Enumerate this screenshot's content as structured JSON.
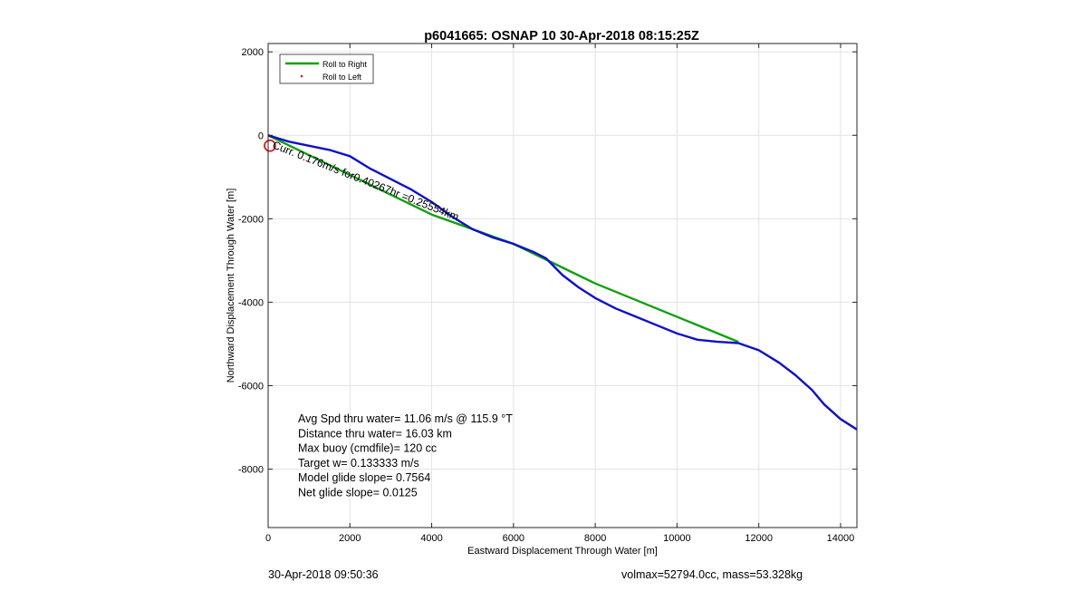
{
  "chart_data": {
    "type": "line",
    "title": "p6041665: OSNAP 10 30-Apr-2018 08:15:25Z",
    "xlabel": "Eastward Displacement Through Water [m]",
    "ylabel": "Northward Displacement Through Water [m]",
    "xlim": [
      0,
      14400
    ],
    "ylim": [
      -9400,
      2200
    ],
    "xticks": [
      0,
      2000,
      4000,
      6000,
      8000,
      10000,
      12000,
      14000
    ],
    "yticks": [
      2000,
      0,
      -2000,
      -4000,
      -6000,
      -8000
    ],
    "grid": true,
    "legend_position": "top-left",
    "series": [
      {
        "name": "Roll to Right",
        "color": "#10a010",
        "x": [
          0,
          4000,
          6000,
          8000,
          11500
        ],
        "y": [
          0,
          -1900,
          -2600,
          -3550,
          -4950
        ]
      },
      {
        "name": "Roll to Left",
        "color": "#d42020",
        "marker": "dot",
        "x": [],
        "y": []
      },
      {
        "name": "",
        "color": "#1010c8",
        "x": [
          0,
          500,
          1000,
          1500,
          2000,
          2500,
          3000,
          3500,
          4000,
          4500,
          5000,
          5500,
          6000,
          6500,
          6800,
          7200,
          7600,
          8000,
          8500,
          9000,
          9500,
          10000,
          10500,
          11000,
          11500,
          12000,
          12500,
          12900,
          13300,
          13600,
          14000,
          14400
        ],
        "y": [
          0,
          -150,
          -250,
          -350,
          -500,
          -800,
          -1050,
          -1300,
          -1600,
          -1950,
          -2250,
          -2450,
          -2600,
          -2800,
          -2950,
          -3350,
          -3650,
          -3900,
          -4150,
          -4350,
          -4550,
          -4750,
          -4900,
          -4950,
          -4980,
          -5150,
          -5450,
          -5750,
          -6100,
          -6450,
          -6800,
          -7050
        ]
      }
    ],
    "start_marker": {
      "x": 0,
      "y": -250,
      "color": "#d42020"
    },
    "annotation_rotated": "Curr. 0.176m/s for0.40267hr =0.25554km",
    "stats": [
      "Avg Spd thru water= 11.06 m/s @ 115.9 °T",
      "Distance thru water= 16.03 km",
      "Max buoy (cmdfile)= 120 cc",
      "Target w= 0.133333 m/s",
      "Model glide slope= 0.7564",
      "Net glide slope= 0.0125"
    ]
  },
  "footer": {
    "left": "30-Apr-2018 09:50:36",
    "right": "volmax=52794.0cc, mass=53.328kg"
  }
}
